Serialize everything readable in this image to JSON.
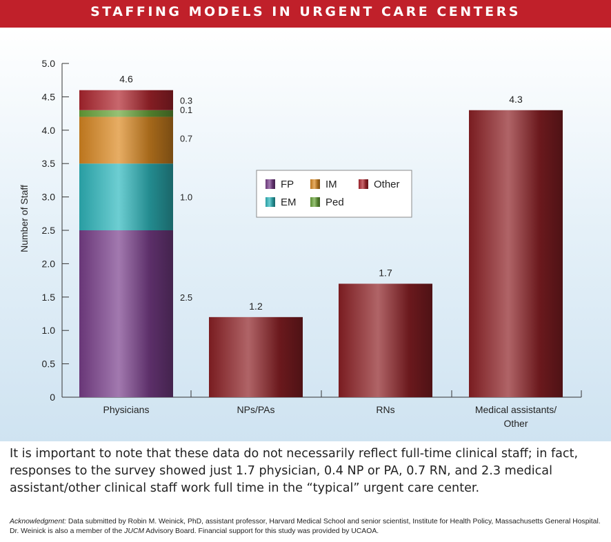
{
  "header": {
    "title": "STAFFING MODELS IN URGENT CARE CENTERS"
  },
  "colors": {
    "header_red": "#c0202a",
    "FP": "#7a3f8c",
    "EM": "#2fb9bf",
    "IM": "#dc8a22",
    "Ped": "#6aa63a",
    "Other": "#b0262f",
    "bar_red": "#8e2126"
  },
  "chart_data": {
    "type": "bar",
    "ylabel": "Number of Staff",
    "ylim": [
      0,
      5
    ],
    "yticks": [
      "0",
      "0.5",
      "1.0",
      "1.5",
      "2.0",
      "2.5",
      "3.0",
      "3.5",
      "4.0",
      "4.5",
      "5.0"
    ],
    "grid": false,
    "legend_position": "center",
    "categories": [
      [
        "Physicians"
      ],
      [
        "NPs/PAs"
      ],
      [
        "RNs"
      ],
      [
        "Medical assistants/",
        "Other"
      ]
    ],
    "values": [
      4.6,
      1.2,
      1.7,
      4.3
    ],
    "value_labels": [
      "4.6",
      "1.2",
      "1.7",
      "4.3"
    ],
    "physician_breakdown": [
      {
        "name": "FP",
        "value": 2.5,
        "label": "2.5"
      },
      {
        "name": "EM",
        "value": 1.0,
        "label": "1.0"
      },
      {
        "name": "IM",
        "value": 0.7,
        "label": "0.7"
      },
      {
        "name": "Ped",
        "value": 0.1,
        "label": "0.1"
      },
      {
        "name": "Other",
        "value": 0.3,
        "label": "0.3"
      }
    ],
    "legend": [
      "FP",
      "IM",
      "Other",
      "EM",
      "Ped"
    ]
  },
  "note": "It is important to note that these data do not necessarily reflect full-time clinical staff; in fact, responses to the survey showed just 1.7 physician, 0.4 NP or PA, 0.7 RN, and 2.3 medical assistant/other clinical staff work full time in the “typical” urgent care center.",
  "acknowledgment": {
    "lead": "Acknowledgment:",
    "part1": " Data submitted by Robin M. Weinick, PhD, assistant professor, Harvard Medical School and senior scientist, Institute for Health Policy, Massachusetts General Hospital. Dr. Weinick is also a member of the ",
    "jucm": "JUCM",
    "part2": " Advisory Board. Financial support for this study was provided by UCAOA."
  }
}
